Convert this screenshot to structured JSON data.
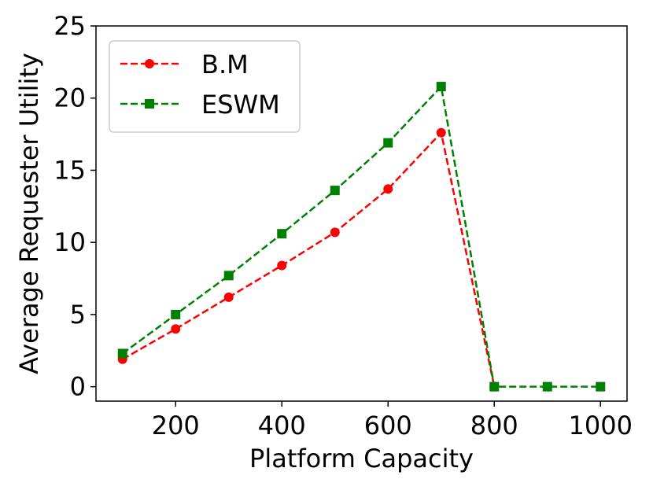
{
  "chart_data": {
    "type": "line",
    "xlabel": "Platform Capacity",
    "ylabel": "Average Requester Utility",
    "x": [
      100,
      200,
      300,
      400,
      500,
      600,
      700,
      800,
      900,
      1000
    ],
    "xlim": [
      50,
      1050
    ],
    "ylim": [
      -1,
      25
    ],
    "xticks": [
      200,
      400,
      600,
      800,
      1000
    ],
    "yticks": [
      0,
      5,
      10,
      15,
      20,
      25
    ],
    "grid": false,
    "legend_position": "top-left",
    "series": [
      {
        "name": "B.M",
        "color": "#ff0000",
        "marker": "circle",
        "line_style": "dashed",
        "x": [
          100,
          200,
          300,
          400,
          500,
          600,
          700,
          800
        ],
        "values": [
          1.9,
          4.0,
          6.2,
          8.4,
          10.7,
          13.7,
          17.6,
          0
        ]
      },
      {
        "name": "ESWM",
        "color": "#008000",
        "marker": "square",
        "line_style": "dashed",
        "x": [
          100,
          200,
          300,
          400,
          500,
          600,
          700,
          800,
          900,
          1000
        ],
        "values": [
          2.3,
          5.0,
          7.7,
          10.6,
          13.6,
          16.9,
          20.8,
          0,
          0,
          0
        ]
      }
    ]
  }
}
